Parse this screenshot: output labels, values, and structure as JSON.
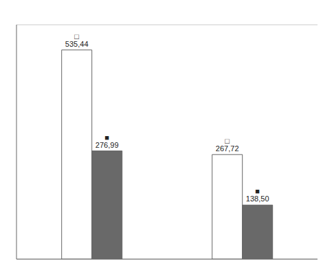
{
  "chart_data": {
    "type": "bar",
    "categories": [
      null,
      null
    ],
    "series": [
      {
        "color": "#FFFFFF",
        "values": [
          535.44,
          267.72
        ],
        "value_labels": [
          "□  535,44",
          "□  267,72"
        ]
      },
      {
        "color": "#696969",
        "values": [
          276.99,
          138.5
        ],
        "value_labels": [
          "■  276,99",
          "■  138,50"
        ]
      }
    ],
    "ylim": [
      0,
      600
    ],
    "yticks": [
      0,
      100,
      200,
      300,
      400,
      500,
      600
    ],
    "grid": true,
    "data_labels": true,
    "tick_labels": false
  }
}
